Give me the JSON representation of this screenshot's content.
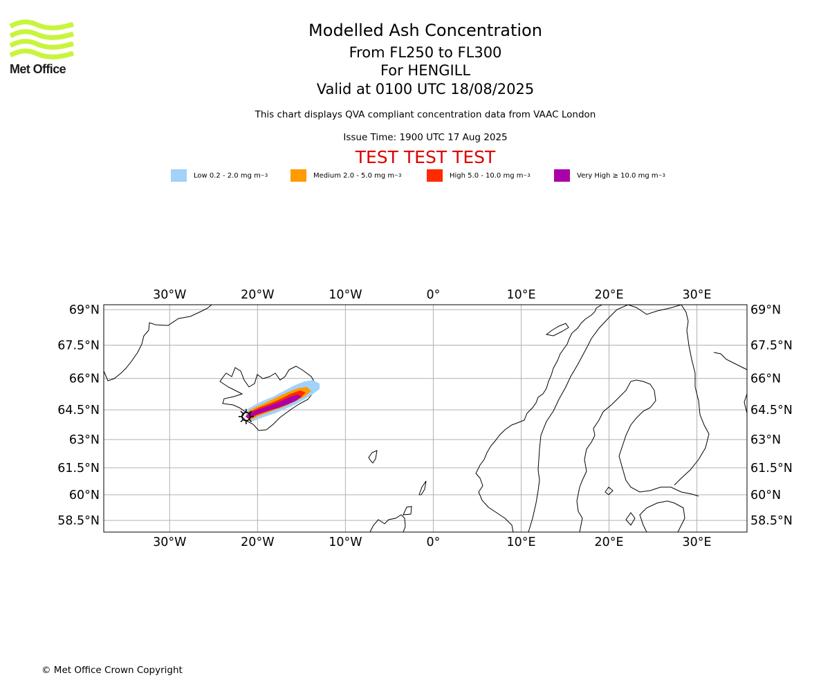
{
  "brand": {
    "name": "Met Office",
    "logo_color": "#c8f53c"
  },
  "header": {
    "title": "Modelled Ash Concentration",
    "level": "From FL250 to FL300",
    "volcano": "For HENGILL",
    "valid": "Valid at 0100 UTC 18/08/2025",
    "subtitle": "This chart displays QVA compliant concentration data from VAAC London",
    "issue_time": "Issue Time: 1900 UTC 17 Aug 2025",
    "test_banner": "TEST TEST TEST",
    "test_color": "#dd0000"
  },
  "legend": [
    {
      "label": "Low 0.2 - 2.0 mg m",
      "sup": "−3",
      "color": "#a0d2fa"
    },
    {
      "label": "Medium 2.0 - 5.0 mg m",
      "sup": "−3",
      "color": "#ff9a00"
    },
    {
      "label": "High 5.0 - 10.0 mg m",
      "sup": "−3",
      "color": "#ff2a00"
    },
    {
      "label": "Very High  ≥  10.0 mg m",
      "sup": "−3",
      "color": "#aa00aa"
    }
  ],
  "map": {
    "lon_range": [
      -37.5,
      35.7
    ],
    "lat_range": [
      57.8,
      69.2
    ],
    "lon_ticks": [
      {
        "value": -30,
        "label": "30°W"
      },
      {
        "value": -20,
        "label": "20°W"
      },
      {
        "value": -10,
        "label": "10°W"
      },
      {
        "value": 0,
        "label": "0°"
      },
      {
        "value": 10,
        "label": "10°E"
      },
      {
        "value": 20,
        "label": "20°E"
      },
      {
        "value": 30,
        "label": "30°E"
      }
    ],
    "lat_ticks": [
      {
        "value": 69,
        "label": "69°N"
      },
      {
        "value": 67.5,
        "label": "67.5°N"
      },
      {
        "value": 66,
        "label": "66°N"
      },
      {
        "value": 64.5,
        "label": "64.5°N"
      },
      {
        "value": 63,
        "label": "63°N"
      },
      {
        "value": 61.5,
        "label": "61.5°N"
      },
      {
        "value": 60,
        "label": "60°N"
      },
      {
        "value": 58.5,
        "label": "58.5°N"
      }
    ],
    "grid": true,
    "volcano_marker": {
      "name": "HENGILL",
      "lon": -21.3,
      "lat": 64.1
    }
  },
  "footer": {
    "copyright": "© Met Office Crown Copyright"
  }
}
